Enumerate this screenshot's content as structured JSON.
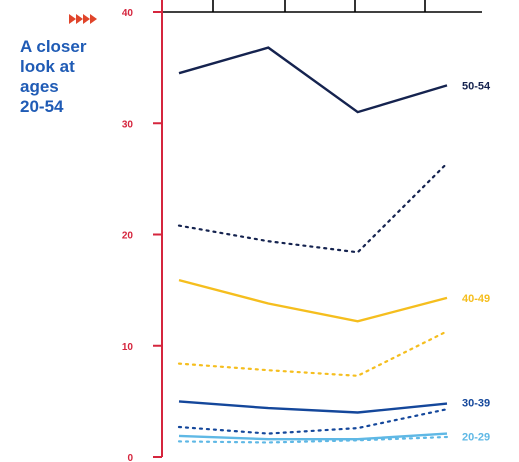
{
  "title_lines": "A closer\nlook at\nages\n20-54",
  "colors": {
    "axis": "#d5253d",
    "arrows": "#e0452b",
    "title": "#1f5bb5"
  },
  "chart_data": {
    "type": "line",
    "x": [
      "",
      "",
      "",
      ""
    ],
    "ylim": [
      0,
      40
    ],
    "yticks": [
      "0",
      "10",
      "20",
      "30",
      "40"
    ],
    "grid": false,
    "series": [
      {
        "name": "50-54",
        "values": [
          34.5,
          36.8,
          31.0,
          33.4
        ],
        "color": "#15234f",
        "style": "solid",
        "labeled": true
      },
      {
        "name": "",
        "values": [
          20.8,
          19.4,
          18.4,
          26.4
        ],
        "color": "#15234f",
        "style": "dotted",
        "labeled": false
      },
      {
        "name": "40-49",
        "values": [
          15.9,
          13.8,
          12.2,
          14.3
        ],
        "color": "#f5be1e",
        "style": "solid",
        "labeled": true
      },
      {
        "name": "",
        "values": [
          8.4,
          7.8,
          7.3,
          11.3
        ],
        "color": "#f5be1e",
        "style": "dotted",
        "labeled": false
      },
      {
        "name": "30-39",
        "values": [
          5.0,
          4.4,
          4.0,
          4.8
        ],
        "color": "#14479b",
        "style": "solid",
        "labeled": true
      },
      {
        "name": "",
        "values": [
          2.7,
          2.1,
          2.6,
          4.3
        ],
        "color": "#14479b",
        "style": "dotted",
        "labeled": false
      },
      {
        "name": "20-29",
        "values": [
          1.9,
          1.6,
          1.6,
          2.1
        ],
        "color": "#5fb8e5",
        "style": "solid",
        "labeled": true
      },
      {
        "name": "",
        "values": [
          1.4,
          1.3,
          1.5,
          1.8
        ],
        "color": "#5fb8e5",
        "style": "dotted",
        "labeled": false
      }
    ]
  }
}
